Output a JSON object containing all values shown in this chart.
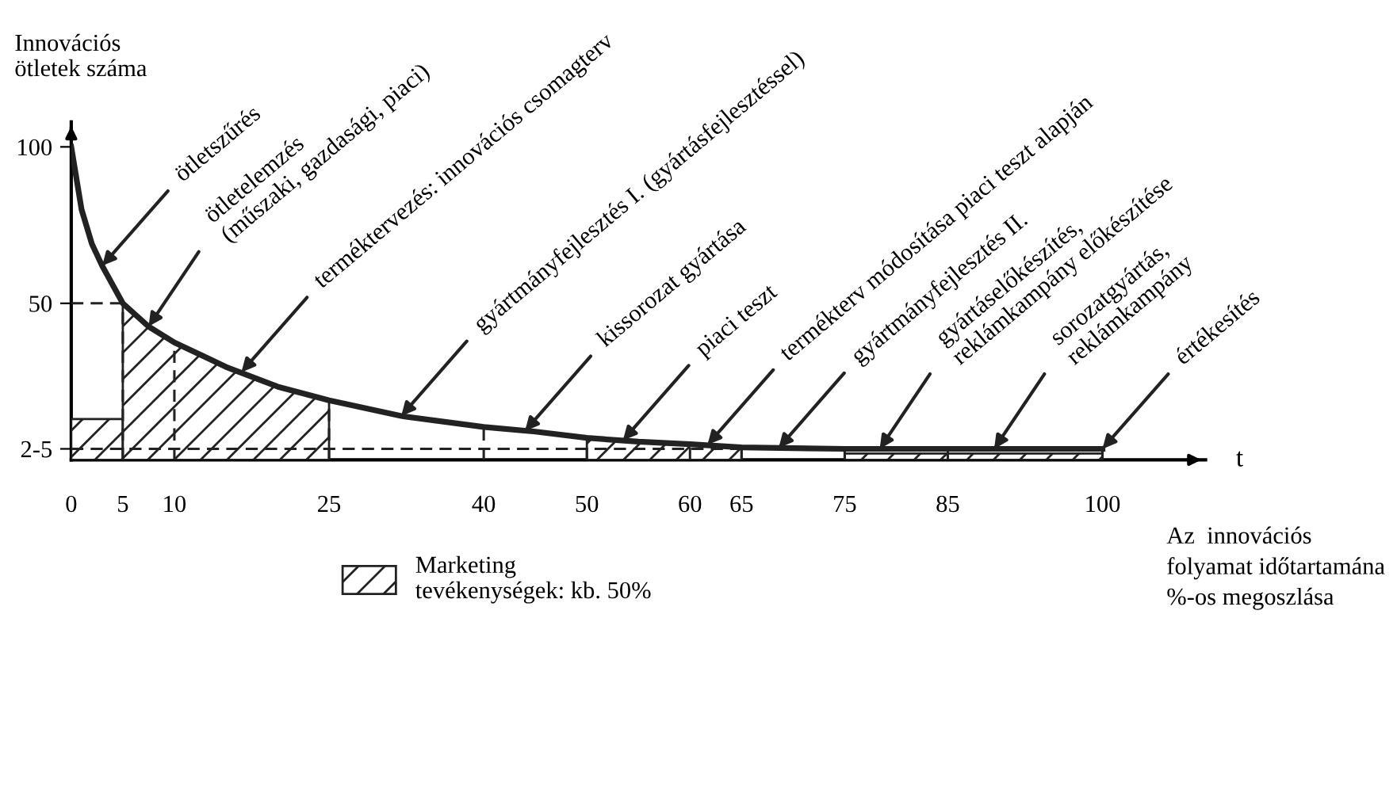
{
  "chart_data": {
    "type": "line",
    "ylabel": "Innovációs\nötletek száma",
    "xlabel": "t",
    "xlim": [
      0,
      110
    ],
    "ylim": [
      0,
      108
    ],
    "xticks": [
      0,
      5,
      10,
      25,
      40,
      50,
      60,
      65,
      75,
      85,
      100
    ],
    "yticks": [
      {
        "value": 3.5,
        "label": "2-5"
      },
      50,
      100
    ],
    "grid": false,
    "legend": "bottom",
    "series": [
      {
        "color": "#222222",
        "x": [
          0,
          1,
          2,
          3,
          5,
          7.5,
          10,
          15,
          20,
          25,
          32,
          40,
          45,
          50,
          55,
          60,
          65,
          70,
          75,
          85,
          100
        ],
        "values": [
          100,
          80,
          69,
          62,
          50,
          42.6,
          37.5,
          29.7,
          23.4,
          19,
          14,
          10.5,
          9,
          7,
          5.8,
          5,
          4,
          3.7,
          3.5,
          3.5,
          3.5
        ]
      },
      {
        "type": "area",
        "name": "Marketing\ntevékenységek: kb. 50%",
        "color": "#222222",
        "x": [
          0,
          5
        ],
        "values": [
          13,
          13
        ]
      },
      {
        "type": "area",
        "color": "#222222",
        "x": [
          5,
          7.5,
          10,
          15,
          20,
          25
        ],
        "values": [
          50,
          42.6,
          37.5,
          29.7,
          23.4,
          19
        ]
      },
      {
        "type": "area",
        "color": "#222222",
        "x": [
          50,
          55,
          60,
          65
        ],
        "values": [
          7,
          5.8,
          5,
          4
        ]
      },
      {
        "type": "area",
        "color": "#222222",
        "x": [
          75,
          100
        ],
        "values": [
          2,
          2
        ]
      },
      {
        "line_style": "dashed",
        "color": "#222222",
        "x": [
          0,
          5
        ],
        "values": [
          50,
          50
        ]
      },
      {
        "line_style": "dashed",
        "color": "#222222",
        "x": [
          0,
          100
        ],
        "values": [
          3.5,
          3.5
        ]
      },
      {
        "line_style": "dashed",
        "color": "#222222",
        "x": [
          5,
          5
        ],
        "values": [
          0,
          50
        ]
      },
      {
        "line_style": "dashed",
        "color": "#222222",
        "x": [
          10,
          10
        ],
        "values": [
          0,
          37.5
        ]
      },
      {
        "line_style": "dashed",
        "color": "#222222",
        "x": [
          25,
          25
        ],
        "values": [
          0,
          19
        ]
      },
      {
        "line_style": "dashed",
        "color": "#222222",
        "x": [
          40,
          40
        ],
        "values": [
          0,
          10.5
        ]
      },
      {
        "line_style": "dashed",
        "color": "#222222",
        "x": [
          50,
          50
        ],
        "values": [
          0,
          7
        ]
      },
      {
        "line_style": "dashed",
        "color": "#222222",
        "x": [
          60,
          60
        ],
        "values": [
          0,
          5
        ]
      },
      {
        "line_style": "dashed",
        "color": "#222222",
        "x": [
          65,
          65
        ],
        "values": [
          0,
          4
        ]
      },
      {
        "line_style": "dashed",
        "color": "#222222",
        "x": [
          75,
          75
        ],
        "values": [
          0,
          3.5
        ]
      },
      {
        "line_style": "dashed",
        "color": "#222222",
        "x": [
          85,
          85
        ],
        "values": [
          0,
          3.5
        ]
      },
      {
        "line_style": "dashed",
        "color": "#222222",
        "x": [
          100,
          100
        ],
        "values": [
          0,
          3.5
        ]
      }
    ],
    "annotations": [
      {
        "text": "ötletszűrés",
        "x": 3,
        "y": 62
      },
      {
        "text": "ötletelemzés\n(műszaki, gazdasági, piaci)",
        "x": 7.5,
        "y": 42.6
      },
      {
        "text": "terméktervezés: innovációs csomagterv",
        "x": 16.5,
        "y": 28
      },
      {
        "text": "gyártmányfejlesztés I. (gyártásfejlesztéssel)",
        "x": 32,
        "y": 14
      },
      {
        "text": "kissorozat gyártása",
        "x": 44,
        "y": 9.2
      },
      {
        "text": "piaci teszt",
        "x": 53.5,
        "y": 6.2
      },
      {
        "text": "termékterv módosítása piaci teszt alapján",
        "x": 61.7,
        "y": 4.8
      },
      {
        "text": "gyártmányfejlesztés II.",
        "x": 68.6,
        "y": 3.8
      },
      {
        "text": "gyártáselőkészítés,\nreklámkampány előkészítése",
        "x": 78.4,
        "y": 3.5
      },
      {
        "text": "sorozatgyártás,\nreklámkampány",
        "x": 89.5,
        "y": 3.5
      },
      {
        "text": "értékesítés",
        "x": 100,
        "y": 3.5
      },
      "Az  innovációs\nfolyamat időtartamána\n%-os megoszlása"
    ]
  }
}
